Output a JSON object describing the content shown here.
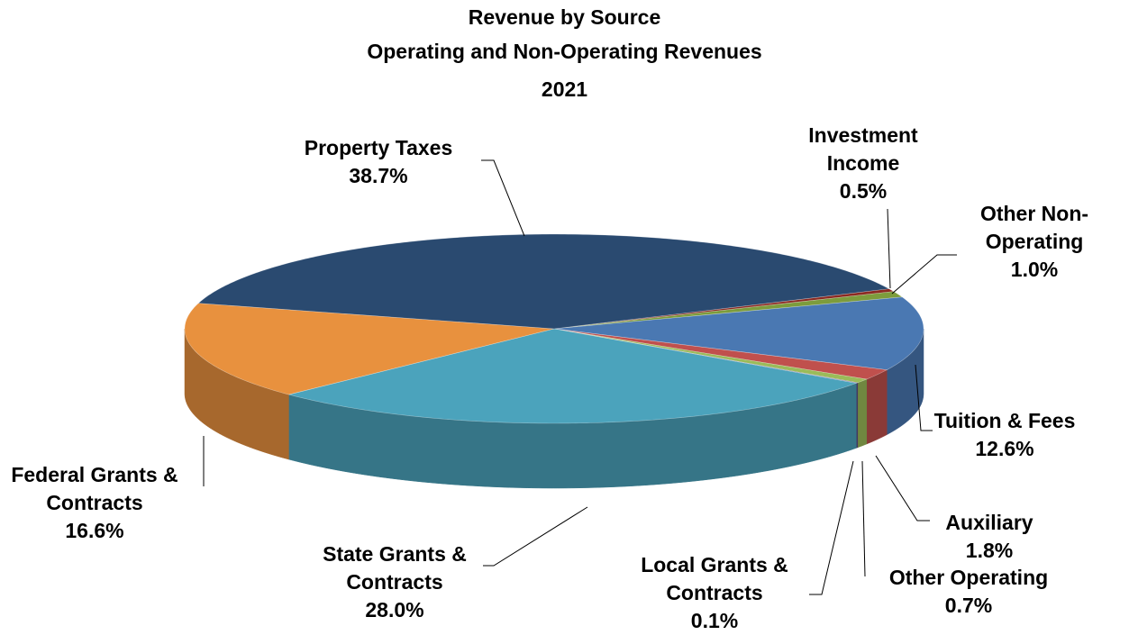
{
  "chart_data": {
    "type": "pie3d",
    "title": "Revenue by Source",
    "subtitle": "Operating and Non-Operating Revenues",
    "year": "2021",
    "categories": [
      "Investment Income",
      "Other Non-Operating",
      "Tuition & Fees",
      "Auxiliary",
      "Other Operating",
      "Local Grants & Contracts",
      "State Grants & Contracts",
      "Federal Grants & Contracts",
      "Property Taxes"
    ],
    "values": [
      0.5,
      1.0,
      12.6,
      1.8,
      0.7,
      0.1,
      28.0,
      16.6,
      38.7
    ],
    "value_labels": [
      "0.5%",
      "1.0%",
      "12.6%",
      "1.8%",
      "0.7%",
      "0.1%",
      "28.0%",
      "16.6%",
      "38.7%"
    ],
    "colors": [
      "#8c2a22",
      "#7d9c3c",
      "#4a78b2",
      "#c0504d",
      "#9bbb59",
      "#5b4a8a",
      "#4ba3bc",
      "#e8913e",
      "#2a4a70"
    ]
  }
}
